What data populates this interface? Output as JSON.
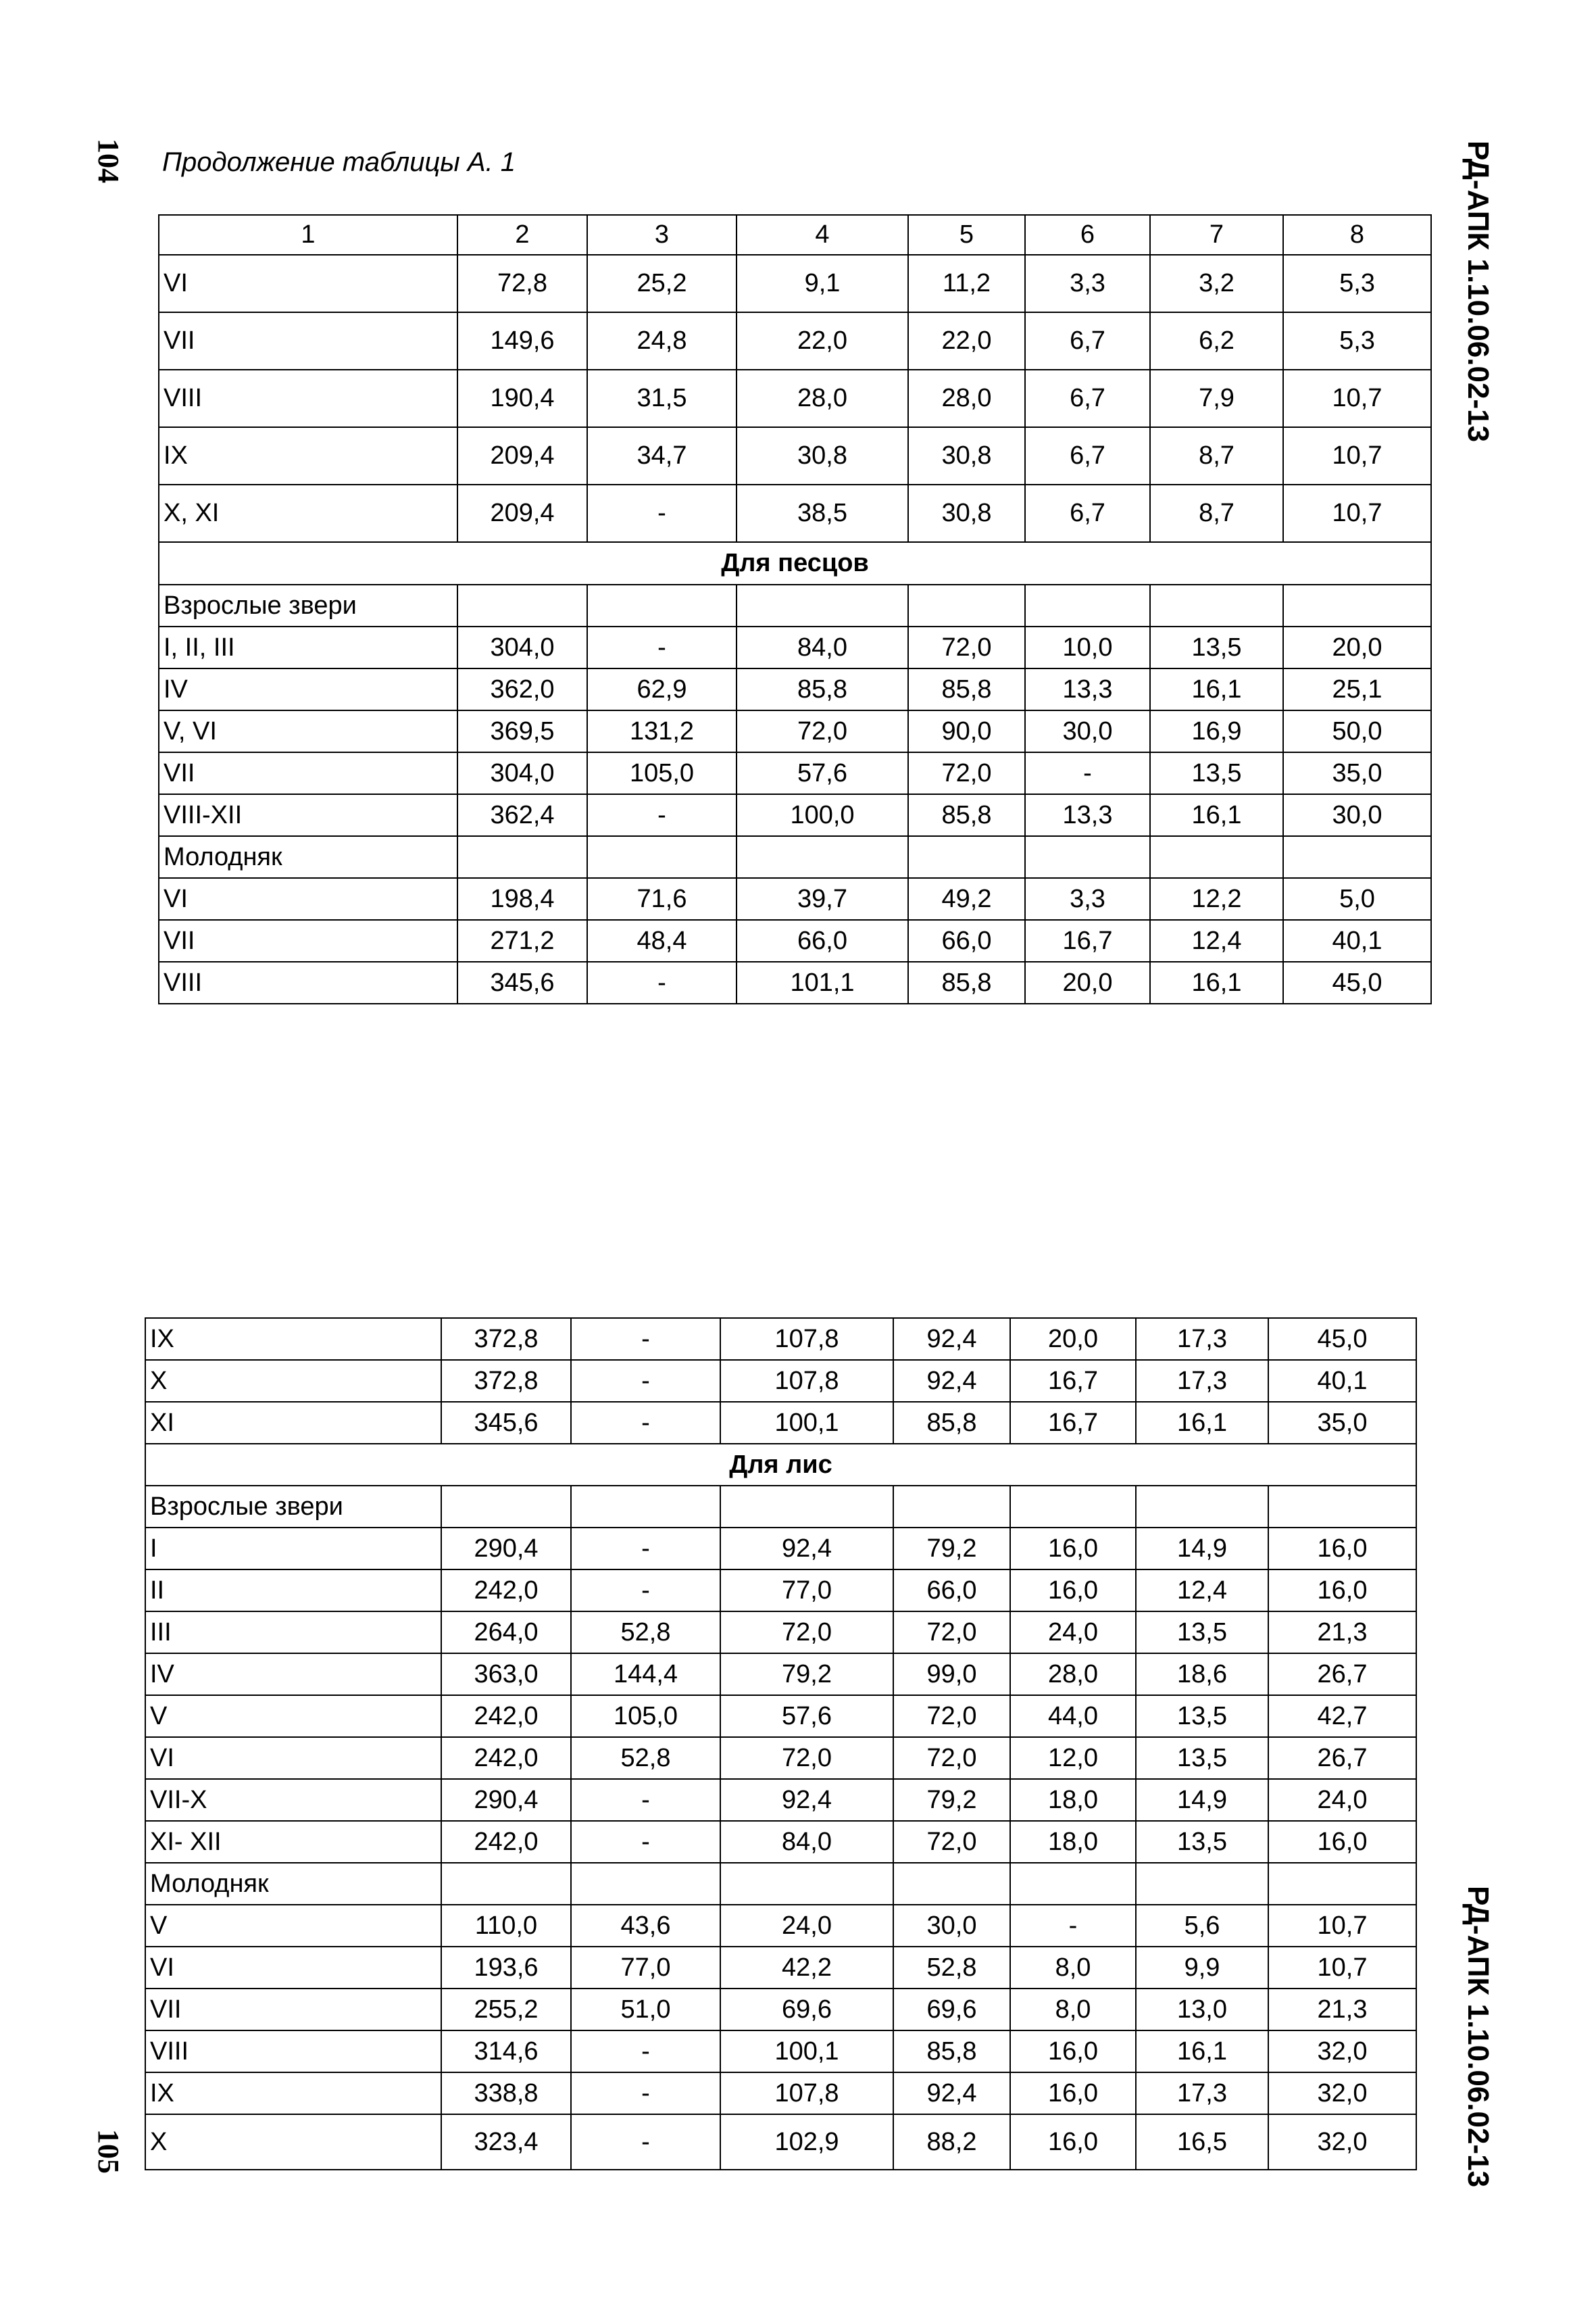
{
  "page_left": {
    "number": "104",
    "doc_id": "РД-АПК 1.10.06.02-13"
  },
  "page_right": {
    "number": "105",
    "doc_id": "РД-АПК 1.10.06.02-13"
  },
  "caption": "Продолжение таблицы А. 1",
  "table_top": {
    "headers": [
      "1",
      "2",
      "3",
      "4",
      "5",
      "6",
      "7",
      "8"
    ],
    "rows": [
      {
        "type": "data",
        "cells": [
          "VI",
          "72,8",
          "25,2",
          "9,1",
          "11,2",
          "3,3",
          "3,2",
          "5,3"
        ]
      },
      {
        "type": "data",
        "cells": [
          "VII",
          "149,6",
          "24,8",
          "22,0",
          "22,0",
          "6,7",
          "6,2",
          "5,3"
        ]
      },
      {
        "type": "data",
        "cells": [
          "VIII",
          "190,4",
          "31,5",
          "28,0",
          "28,0",
          "6,7",
          "7,9",
          "10,7"
        ]
      },
      {
        "type": "data",
        "cells": [
          "IX",
          "209,4",
          "34,7",
          "30,8",
          "30,8",
          "6,7",
          "8,7",
          "10,7"
        ]
      },
      {
        "type": "data",
        "cells": [
          "X, XI",
          "209,4",
          "-",
          "38,5",
          "30,8",
          "6,7",
          "8,7",
          "10,7"
        ]
      },
      {
        "type": "section",
        "label": "Для песцов"
      },
      {
        "type": "data",
        "cells": [
          "Взрослые звери",
          "",
          "",
          "",
          "",
          "",
          "",
          ""
        ]
      },
      {
        "type": "data",
        "cells": [
          "I, II, III",
          "304,0",
          "-",
          "84,0",
          "72,0",
          "10,0",
          "13,5",
          "20,0"
        ]
      },
      {
        "type": "data",
        "cells": [
          "IV",
          "362,0",
          "62,9",
          "85,8",
          "85,8",
          "13,3",
          "16,1",
          "25,1"
        ]
      },
      {
        "type": "data",
        "cells": [
          "V, VI",
          "369,5",
          "131,2",
          "72,0",
          "90,0",
          "30,0",
          "16,9",
          "50,0"
        ]
      },
      {
        "type": "data",
        "cells": [
          "VII",
          "304,0",
          "105,0",
          "57,6",
          "72,0",
          "-",
          "13,5",
          "35,0"
        ]
      },
      {
        "type": "data",
        "cells": [
          "VIII-XII",
          "362,4",
          "-",
          "100,0",
          "85,8",
          "13,3",
          "16,1",
          "30,0"
        ]
      },
      {
        "type": "data",
        "cells": [
          "Молодняк",
          "",
          "",
          "",
          "",
          "",
          "",
          ""
        ]
      },
      {
        "type": "data",
        "cells": [
          "VI",
          "198,4",
          "71,6",
          "39,7",
          "49,2",
          "3,3",
          "12,2",
          "5,0"
        ]
      },
      {
        "type": "data",
        "cells": [
          "VII",
          "271,2",
          "48,4",
          "66,0",
          "66,0",
          "16,7",
          "12,4",
          "40,1"
        ]
      },
      {
        "type": "data",
        "cells": [
          "VIII",
          "345,6",
          "-",
          "101,1",
          "85,8",
          "20,0",
          "16,1",
          "45,0"
        ]
      }
    ]
  },
  "table_bottom": {
    "rows": [
      {
        "type": "data",
        "cells": [
          "IX",
          "372,8",
          "-",
          "107,8",
          "92,4",
          "20,0",
          "17,3",
          "45,0"
        ]
      },
      {
        "type": "data",
        "cells": [
          "X",
          "372,8",
          "-",
          "107,8",
          "92,4",
          "16,7",
          "17,3",
          "40,1"
        ]
      },
      {
        "type": "data",
        "cells": [
          "XI",
          "345,6",
          "-",
          "100,1",
          "85,8",
          "16,7",
          "16,1",
          "35,0"
        ]
      },
      {
        "type": "section",
        "label": "Для лис"
      },
      {
        "type": "data",
        "cells": [
          "Взрослые звери",
          "",
          "",
          "",
          "",
          "",
          "",
          ""
        ]
      },
      {
        "type": "data",
        "cells": [
          "I",
          "290,4",
          "-",
          "92,4",
          "79,2",
          "16,0",
          "14,9",
          "16,0"
        ]
      },
      {
        "type": "data",
        "cells": [
          "II",
          "242,0",
          "-",
          "77,0",
          "66,0",
          "16,0",
          "12,4",
          "16,0"
        ]
      },
      {
        "type": "data",
        "cells": [
          "III",
          "264,0",
          "52,8",
          "72,0",
          "72,0",
          "24,0",
          "13,5",
          "21,3"
        ]
      },
      {
        "type": "data",
        "cells": [
          "IV",
          "363,0",
          "144,4",
          "79,2",
          "99,0",
          "28,0",
          "18,6",
          "26,7"
        ]
      },
      {
        "type": "data",
        "cells": [
          "V",
          "242,0",
          "105,0",
          "57,6",
          "72,0",
          "44,0",
          "13,5",
          "42,7"
        ]
      },
      {
        "type": "data",
        "cells": [
          "VI",
          "242,0",
          "52,8",
          "72,0",
          "72,0",
          "12,0",
          "13,5",
          "26,7"
        ]
      },
      {
        "type": "data",
        "cells": [
          "VII-X",
          "290,4",
          "-",
          "92,4",
          "79,2",
          "18,0",
          "14,9",
          "24,0"
        ]
      },
      {
        "type": "data",
        "cells": [
          "XI- XII",
          "242,0",
          "-",
          "84,0",
          "72,0",
          "18,0",
          "13,5",
          "16,0"
        ]
      },
      {
        "type": "data",
        "cells": [
          "Молодняк",
          "",
          "",
          "",
          "",
          "",
          "",
          ""
        ]
      },
      {
        "type": "data",
        "cells": [
          "V",
          "110,0",
          "43,6",
          "24,0",
          "30,0",
          "-",
          "5,6",
          "10,7"
        ]
      },
      {
        "type": "data",
        "cells": [
          "VI",
          "193,6",
          "77,0",
          "42,2",
          "52,8",
          "8,0",
          "9,9",
          "10,7"
        ]
      },
      {
        "type": "data",
        "cells": [
          "VII",
          "255,2",
          "51,0",
          "69,6",
          "69,6",
          "8,0",
          "13,0",
          "21,3"
        ]
      },
      {
        "type": "data",
        "cells": [
          "VIII",
          "314,6",
          "-",
          "100,1",
          "85,8",
          "16,0",
          "16,1",
          "32,0"
        ]
      },
      {
        "type": "data",
        "cells": [
          "IX",
          "338,8",
          "-",
          "107,8",
          "92,4",
          "16,0",
          "17,3",
          "32,0"
        ]
      },
      {
        "type": "data",
        "cells": [
          "X",
          "323,4",
          "-",
          "102,9",
          "88,2",
          "16,0",
          "16,5",
          "32,0"
        ]
      }
    ]
  }
}
